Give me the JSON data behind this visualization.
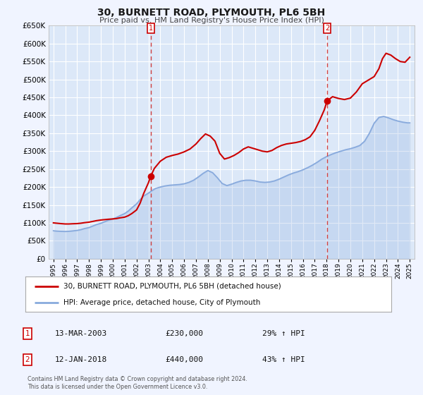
{
  "title": "30, BURNETT ROAD, PLYMOUTH, PL6 5BH",
  "subtitle": "Price paid vs. HM Land Registry's House Price Index (HPI)",
  "background_color": "#f0f4ff",
  "plot_bg_color": "#dce8f8",
  "grid_color": "#ffffff",
  "ylim": [
    0,
    650000
  ],
  "yticks": [
    0,
    50000,
    100000,
    150000,
    200000,
    250000,
    300000,
    350000,
    400000,
    450000,
    500000,
    550000,
    600000,
    650000
  ],
  "xlim_start": 1994.6,
  "xlim_end": 2025.4,
  "xticks": [
    1995,
    1996,
    1997,
    1998,
    1999,
    2000,
    2001,
    2002,
    2003,
    2004,
    2005,
    2006,
    2007,
    2008,
    2009,
    2010,
    2011,
    2012,
    2013,
    2014,
    2015,
    2016,
    2017,
    2018,
    2019,
    2020,
    2021,
    2022,
    2023,
    2024,
    2025
  ],
  "marker1_x": 2003.19,
  "marker1_y": 230000,
  "marker1_label": "1",
  "marker1_date": "13-MAR-2003",
  "marker1_price": "£230,000",
  "marker1_hpi": "29% ↑ HPI",
  "marker2_x": 2018.04,
  "marker2_y": 440000,
  "marker2_label": "2",
  "marker2_date": "12-JAN-2018",
  "marker2_price": "£440,000",
  "marker2_hpi": "43% ↑ HPI",
  "vline_color": "#d04040",
  "marker_color": "#cc0000",
  "property_line_color": "#cc0000",
  "hpi_line_color": "#88aadd",
  "legend_label_property": "30, BURNETT ROAD, PLYMOUTH, PL6 5BH (detached house)",
  "legend_label_hpi": "HPI: Average price, detached house, City of Plymouth",
  "footer_text": "Contains HM Land Registry data © Crown copyright and database right 2024.\nThis data is licensed under the Open Government Licence v3.0.",
  "property_x": [
    1995.0,
    1995.3,
    1995.6,
    1996.0,
    1996.3,
    1996.6,
    1997.0,
    1997.3,
    1997.6,
    1998.0,
    1998.3,
    1998.6,
    1999.0,
    1999.3,
    1999.6,
    2000.0,
    2000.3,
    2000.6,
    2001.0,
    2001.3,
    2001.6,
    2002.0,
    2002.3,
    2002.6,
    2003.0,
    2003.19,
    2003.5,
    2004.0,
    2004.5,
    2005.0,
    2005.5,
    2006.0,
    2006.5,
    2007.0,
    2007.4,
    2007.8,
    2008.2,
    2008.6,
    2009.0,
    2009.4,
    2009.8,
    2010.2,
    2010.6,
    2011.0,
    2011.4,
    2011.8,
    2012.2,
    2012.6,
    2013.0,
    2013.4,
    2013.8,
    2014.2,
    2014.6,
    2015.0,
    2015.4,
    2015.8,
    2016.2,
    2016.6,
    2017.0,
    2017.4,
    2017.8,
    2018.04,
    2018.5,
    2019.0,
    2019.5,
    2020.0,
    2020.5,
    2021.0,
    2021.5,
    2022.0,
    2022.4,
    2022.7,
    2023.0,
    2023.4,
    2023.8,
    2024.2,
    2024.6,
    2025.0
  ],
  "property_y": [
    100000,
    99000,
    98000,
    97000,
    97000,
    97500,
    98000,
    99000,
    100500,
    102000,
    104000,
    106000,
    108000,
    109000,
    110000,
    111000,
    112000,
    114000,
    116000,
    120000,
    126000,
    136000,
    155000,
    182000,
    212000,
    230000,
    252000,
    272000,
    283000,
    288000,
    292000,
    298000,
    306000,
    320000,
    335000,
    348000,
    342000,
    328000,
    294000,
    278000,
    282000,
    288000,
    296000,
    306000,
    312000,
    308000,
    304000,
    300000,
    298000,
    302000,
    310000,
    316000,
    320000,
    322000,
    324000,
    327000,
    332000,
    340000,
    358000,
    385000,
    415000,
    440000,
    452000,
    447000,
    444000,
    448000,
    465000,
    488000,
    498000,
    508000,
    530000,
    558000,
    573000,
    568000,
    558000,
    550000,
    548000,
    562000
  ],
  "hpi_x": [
    1995.0,
    1995.3,
    1995.6,
    1996.0,
    1996.3,
    1996.6,
    1997.0,
    1997.3,
    1997.6,
    1998.0,
    1998.3,
    1998.6,
    1999.0,
    1999.3,
    1999.6,
    2000.0,
    2000.3,
    2000.6,
    2001.0,
    2001.3,
    2001.6,
    2002.0,
    2002.3,
    2002.6,
    2003.0,
    2003.3,
    2003.6,
    2004.0,
    2004.4,
    2004.8,
    2005.2,
    2005.6,
    2006.0,
    2006.4,
    2006.8,
    2007.2,
    2007.6,
    2008.0,
    2008.4,
    2008.8,
    2009.2,
    2009.6,
    2010.0,
    2010.4,
    2010.8,
    2011.2,
    2011.6,
    2012.0,
    2012.4,
    2012.8,
    2013.2,
    2013.6,
    2014.0,
    2014.4,
    2014.8,
    2015.2,
    2015.6,
    2016.0,
    2016.4,
    2016.8,
    2017.2,
    2017.6,
    2018.0,
    2018.4,
    2018.8,
    2019.2,
    2019.6,
    2020.0,
    2020.4,
    2020.8,
    2021.2,
    2021.6,
    2022.0,
    2022.4,
    2022.8,
    2023.2,
    2023.6,
    2024.0,
    2024.4,
    2024.8,
    2025.0
  ],
  "hpi_y": [
    78000,
    77000,
    76500,
    76000,
    76500,
    77500,
    79000,
    81000,
    84000,
    87000,
    91000,
    95000,
    99000,
    103000,
    107000,
    111000,
    115000,
    120000,
    126000,
    133000,
    142000,
    153000,
    165000,
    175000,
    183000,
    190000,
    196000,
    200000,
    203000,
    205000,
    206000,
    207000,
    209000,
    213000,
    219000,
    228000,
    238000,
    246000,
    240000,
    226000,
    210000,
    204000,
    208000,
    213000,
    217000,
    219000,
    219000,
    217000,
    214000,
    213000,
    214000,
    217000,
    222000,
    228000,
    234000,
    239000,
    243000,
    248000,
    254000,
    261000,
    269000,
    278000,
    285000,
    291000,
    296000,
    300000,
    304000,
    307000,
    311000,
    316000,
    328000,
    350000,
    378000,
    394000,
    397000,
    393000,
    388000,
    384000,
    381000,
    379000,
    379000
  ]
}
